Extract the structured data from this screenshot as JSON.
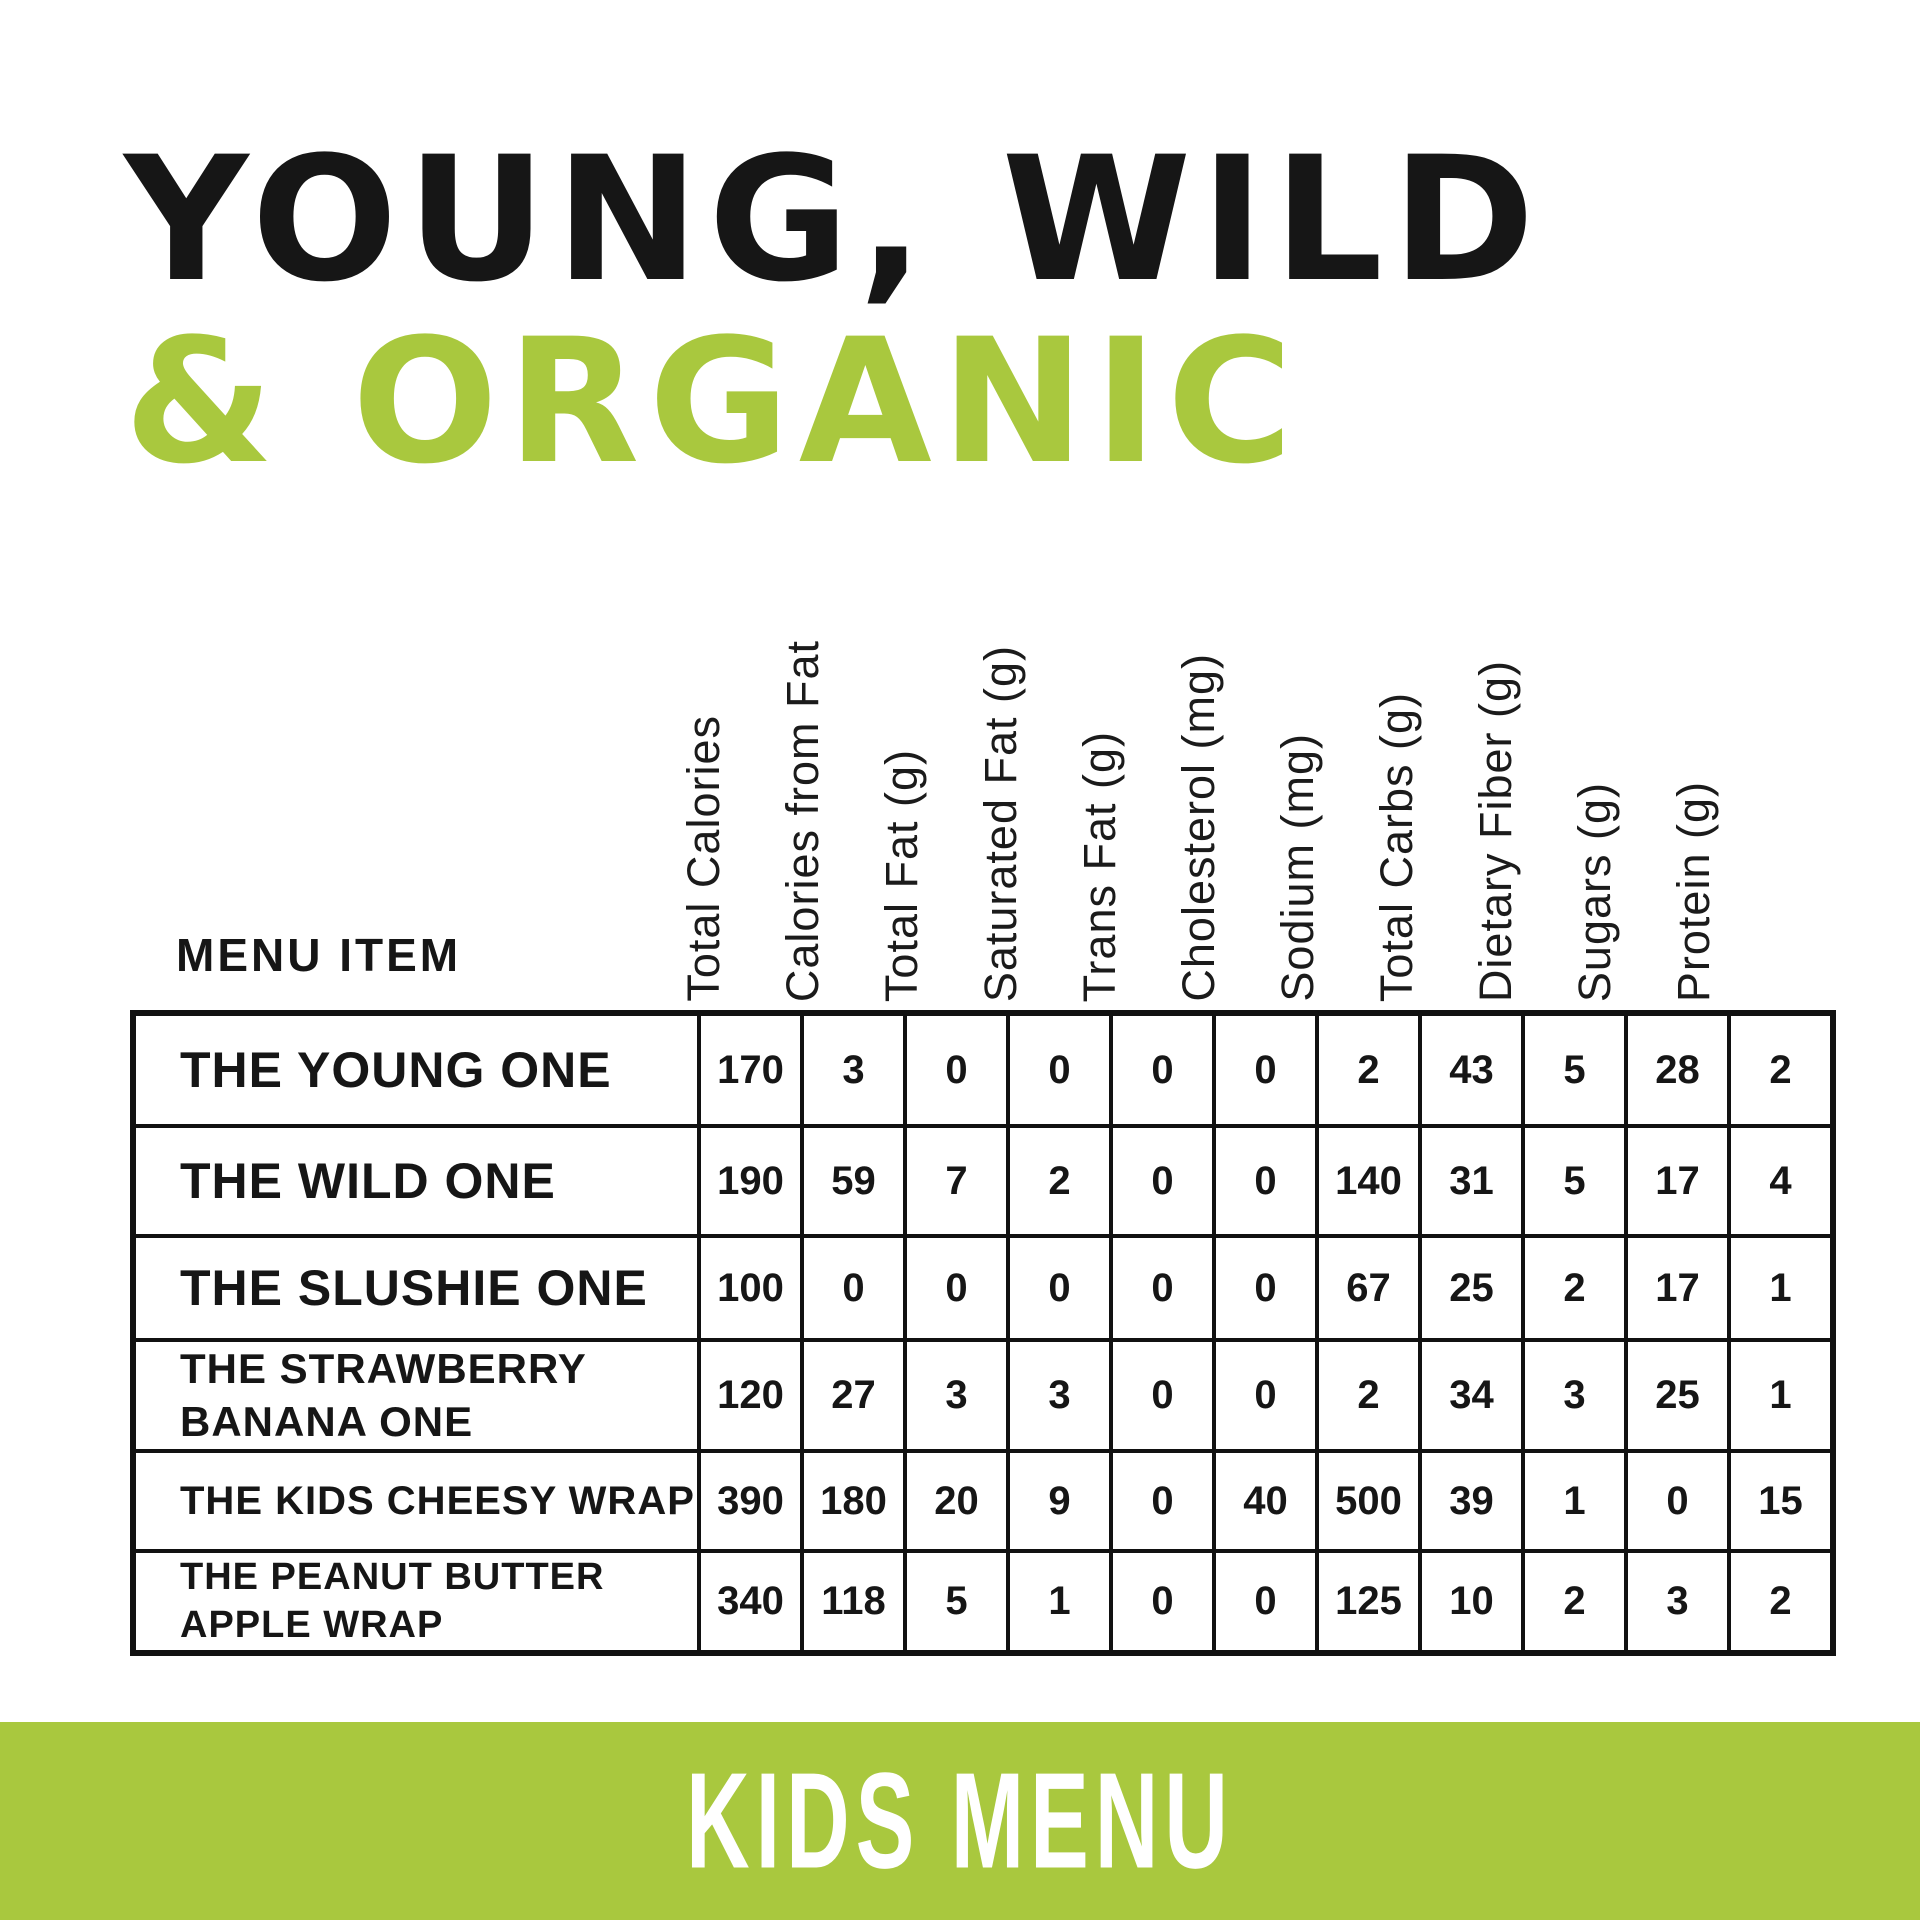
{
  "title": {
    "line1": "YOUNG, WILD",
    "line2": "& ORGANIC"
  },
  "table": {
    "menu_item_header": "MENU ITEM",
    "columns": [
      "Total Calories",
      "Calories from Fat",
      "Total Fat (g)",
      "Saturated Fat (g)",
      "Trans Fat (g)",
      "Cholesterol (mg)",
      "Sodium (mg)",
      "Total Carbs (g)",
      "Dietary Fiber (g)",
      "Sugars (g)",
      "Protein (g)"
    ],
    "rows": [
      {
        "label": "THE YOUNG ONE",
        "values": [
          170,
          3,
          0,
          0,
          0,
          0,
          2,
          43,
          5,
          28,
          2
        ]
      },
      {
        "label": "THE WILD ONE",
        "values": [
          190,
          59,
          7,
          2,
          0,
          0,
          140,
          31,
          5,
          17,
          4
        ]
      },
      {
        "label": "THE SLUSHIE ONE",
        "values": [
          100,
          0,
          0,
          0,
          0,
          0,
          67,
          25,
          2,
          17,
          1
        ]
      },
      {
        "label": "THE STRAWBERRY\nBANANA ONE",
        "values": [
          120,
          27,
          3,
          3,
          0,
          0,
          2,
          34,
          3,
          25,
          1
        ]
      },
      {
        "label": "THE KIDS CHEESY WRAP",
        "values": [
          390,
          180,
          20,
          9,
          0,
          40,
          500,
          39,
          1,
          0,
          15
        ]
      },
      {
        "label": "THE PEANUT BUTTER\nAPPLE WRAP",
        "values": [
          340,
          118,
          5,
          1,
          0,
          0,
          125,
          10,
          2,
          3,
          2
        ]
      }
    ]
  },
  "footer": {
    "label": "KIDS MENU"
  },
  "colors": {
    "accent_green": "#a9c83e",
    "text_black": "#161616",
    "footer_text": "#ffffff"
  }
}
